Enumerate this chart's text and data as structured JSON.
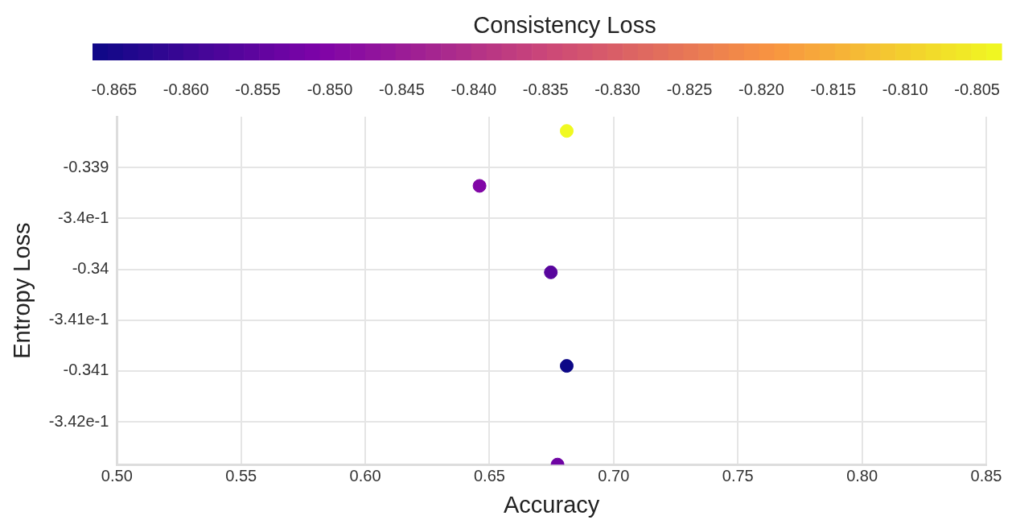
{
  "chart_data": {
    "type": "scatter",
    "xlabel": "Accuracy",
    "ylabel": "Entropy Loss",
    "clabel": "Consistency Loss",
    "x": [
      0.6811,
      0.646,
      0.6747,
      0.6811,
      0.6774
    ],
    "values": [
      -0.33864,
      -0.33918,
      -0.34003,
      -0.34095,
      -0.34192
    ],
    "cvalues": [
      -0.8033,
      -0.85,
      -0.856,
      -0.8665,
      -0.853
    ],
    "clim": [
      -0.8665,
      -0.8033
    ],
    "cticks": [
      -0.865,
      {
        "value": -0.86,
        "label": "-0.860"
      },
      -0.855,
      {
        "value": -0.85,
        "label": "-0.850"
      },
      -0.845,
      {
        "value": -0.84,
        "label": "-0.840"
      },
      -0.835,
      {
        "value": -0.83,
        "label": "-0.830"
      },
      -0.825,
      {
        "value": -0.82,
        "label": "-0.820"
      },
      -0.815,
      {
        "value": -0.81,
        "label": "-0.810"
      },
      -0.805
    ],
    "xlim": [
      0.5,
      0.85
    ],
    "xticks": [
      {
        "value": 0.5,
        "label": "0.50"
      },
      0.55,
      {
        "value": 0.6,
        "label": "0.60"
      },
      0.65,
      {
        "value": 0.7,
        "label": "0.70"
      },
      0.75,
      {
        "value": 0.8,
        "label": "0.80"
      },
      0.85
    ],
    "ylim": [
      -0.34192,
      -0.3385
    ],
    "yticks": [
      -0.339,
      {
        "value": -0.3395,
        "label": "-3.4e-1"
      },
      -0.34,
      {
        "value": -0.3405,
        "label": "-3.41e-1"
      },
      -0.341,
      {
        "value": -0.3415,
        "label": "-3.42e-1"
      }
    ],
    "grid": true,
    "marker": "circle",
    "legend": false
  }
}
